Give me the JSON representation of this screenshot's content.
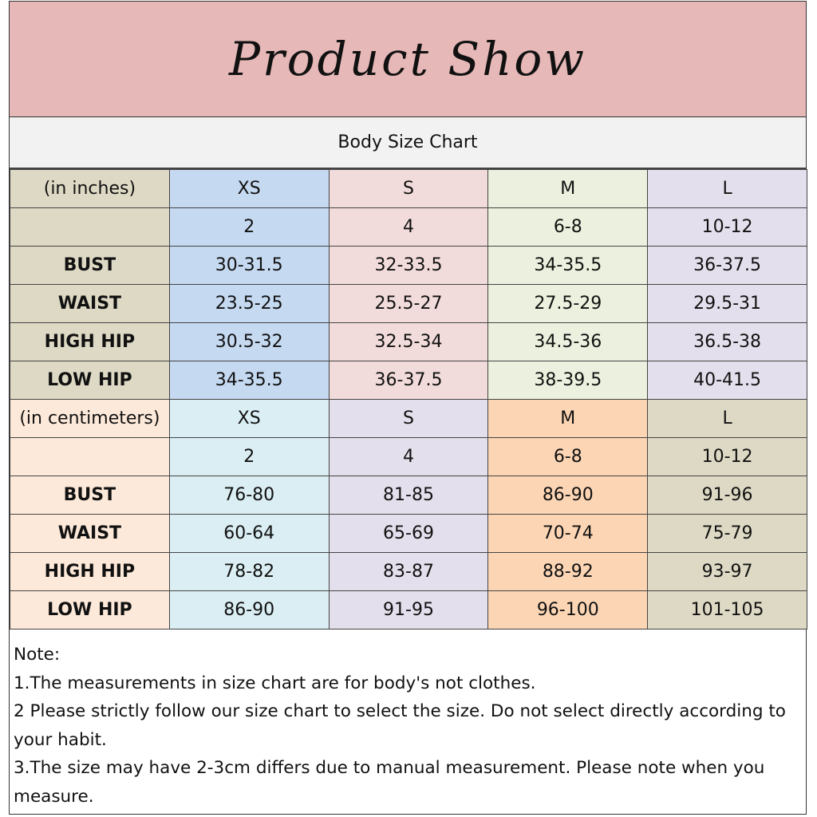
{
  "title": "Product Show",
  "subtitle": "Body Size Chart",
  "sections": [
    {
      "unit_label": "(in inches)",
      "colors": [
        "#ddd9c4",
        "#c5d9f1",
        "#f2dcdb",
        "#ebf1de",
        "#e4dfec"
      ],
      "sizes": [
        "XS",
        "S",
        "M",
        "L"
      ],
      "us_sizes": [
        "2",
        "4",
        "6-8",
        "10-12"
      ],
      "rows": [
        {
          "label": "BUST",
          "values": [
            "30-31.5",
            "32-33.5",
            "34-35.5",
            "36-37.5"
          ]
        },
        {
          "label": "WAIST",
          "values": [
            "23.5-25",
            "25.5-27",
            "27.5-29",
            "29.5-31"
          ]
        },
        {
          "label": "HIGH HIP",
          "values": [
            "30.5-32",
            "32.5-34",
            "34.5-36",
            "36.5-38"
          ]
        },
        {
          "label": "LOW HIP",
          "values": [
            "34-35.5",
            "36-37.5",
            "38-39.5",
            "40-41.5"
          ]
        }
      ]
    },
    {
      "unit_label": "(in centimeters)",
      "colors": [
        "#fde9d9",
        "#daeef3",
        "#e4dfec",
        "#fcd5b4",
        "#ddd9c4"
      ],
      "sizes": [
        "XS",
        "S",
        "M",
        "L"
      ],
      "us_sizes": [
        "2",
        "4",
        "6-8",
        "10-12"
      ],
      "rows": [
        {
          "label": "BUST",
          "values": [
            "76-80",
            "81-85",
            "86-90",
            "91-96"
          ]
        },
        {
          "label": "WAIST",
          "values": [
            "60-64",
            "65-69",
            "70-74",
            "75-79"
          ]
        },
        {
          "label": "HIGH HIP",
          "values": [
            "78-82",
            "83-87",
            "88-92",
            "93-97"
          ]
        },
        {
          "label": "LOW HIP",
          "values": [
            "86-90",
            "91-95",
            "96-100",
            "101-105"
          ]
        }
      ]
    }
  ],
  "notes": [
    "Note:",
    "1.The measurements in size chart are for body's not clothes.",
    "2 Please strictly follow our size chart to select the size. Do not select directly according to your habit.",
    "3.The size may have 2-3cm differs due to manual measurement. Please note when you measure."
  ]
}
